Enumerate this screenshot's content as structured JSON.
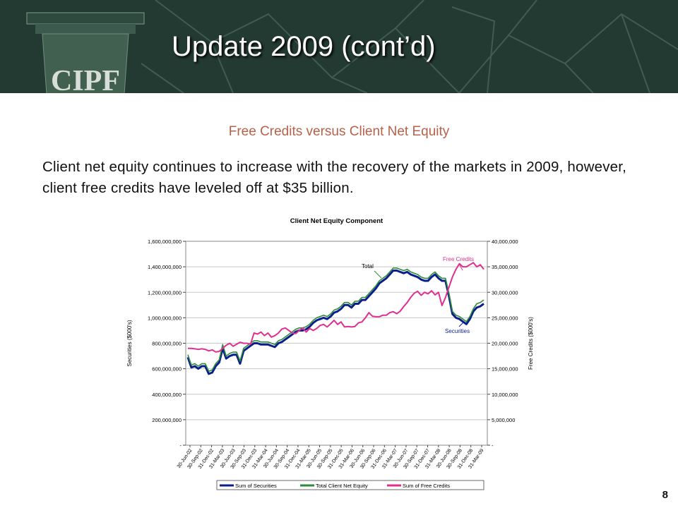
{
  "slide": {
    "logo_text": "CIPF",
    "title": "Update 2009 (cont’d)",
    "subtitle": "Free Credits versus Client Net Equity",
    "body": "Client net equity continues to increase with the recovery of the markets in 2009, however, client free credits have leveled off at $35 billion.",
    "page_number": "8"
  },
  "colors": {
    "header_bg": "#233a32",
    "subtitle": "#b8614a",
    "securities": "#0a1f8c",
    "total": "#2e8b3a",
    "free_credits": "#e0308f"
  },
  "chart_data": {
    "type": "line",
    "title": "Client Net Equity Component",
    "ylabel_left": "Securities ($000's)",
    "ylabel_right": "Free Credits ($000's)",
    "left_axis": {
      "ylim": [
        0,
        1600000000
      ],
      "ticks": [
        "1,600,000,000",
        "1,400,000,000",
        "1,200,000,000",
        "1,000,000,000",
        "800,000,000",
        "600,000,000",
        "400,000,000",
        "200,000,000",
        "-"
      ]
    },
    "right_axis": {
      "ylim": [
        0,
        40000000
      ],
      "ticks": [
        "40,000,000",
        "35,000,000",
        "30,000,000",
        "25,000,000",
        "20,000,000",
        "15,000,000",
        "10,000,000",
        "5,000,000",
        "-"
      ]
    },
    "grid": true,
    "legend_position": "bottom",
    "annotations": [
      "Total",
      "Free Credits",
      "Securities"
    ],
    "x_labels": [
      "30-Jun-02",
      "30-Sep-02",
      "31-Dec-02",
      "31-Mar-03",
      "30-Jun-03",
      "30-Sep-03",
      "31-Dec-03",
      "31-Mar-04",
      "30-Jun-04",
      "30-Sep-04",
      "31-Dec-04",
      "31-Mar-05",
      "30-Jun-05",
      "30-Sep-05",
      "31-Dec-05",
      "31-Mar-06",
      "30-Jun-06",
      "30-Sep-06",
      "31-Dec-06",
      "31-Mar-07",
      "30-Jun-07",
      "30-Sep-07",
      "31-Dec-07",
      "31-Mar-08",
      "30-Jun-08",
      "30-Sep-08",
      "31-Dec-08",
      "31-Mar-09"
    ],
    "series": [
      {
        "name": "Sum of Securities",
        "axis": "left",
        "values": [
          690000000,
          610000000,
          620000000,
          600000000,
          620000000,
          620000000,
          560000000,
          570000000,
          620000000,
          650000000,
          760000000,
          680000000,
          700000000,
          710000000,
          710000000,
          640000000,
          740000000,
          760000000,
          780000000,
          800000000,
          800000000,
          790000000,
          790000000,
          790000000,
          780000000,
          770000000,
          800000000,
          810000000,
          830000000,
          850000000,
          870000000,
          890000000,
          900000000,
          900000000,
          910000000,
          930000000,
          960000000,
          980000000,
          990000000,
          1000000000,
          990000000,
          1010000000,
          1040000000,
          1050000000,
          1070000000,
          1100000000,
          1100000000,
          1080000000,
          1110000000,
          1110000000,
          1140000000,
          1140000000,
          1170000000,
          1200000000,
          1230000000,
          1270000000,
          1290000000,
          1310000000,
          1340000000,
          1370000000,
          1370000000,
          1360000000,
          1350000000,
          1360000000,
          1340000000,
          1330000000,
          1320000000,
          1300000000,
          1290000000,
          1290000000,
          1320000000,
          1340000000,
          1310000000,
          1290000000,
          1290000000,
          1170000000,
          1030000000,
          1000000000,
          990000000,
          970000000,
          950000000,
          990000000,
          1050000000,
          1080000000,
          1090000000,
          1110000000
        ]
      },
      {
        "name": "Total Client Net Equity",
        "axis": "left",
        "values": [
          710000000,
          630000000,
          640000000,
          620000000,
          640000000,
          640000000,
          580000000,
          590000000,
          640000000,
          670000000,
          790000000,
          700000000,
          720000000,
          730000000,
          730000000,
          660000000,
          760000000,
          780000000,
          800000000,
          820000000,
          820000000,
          810000000,
          810000000,
          810000000,
          800000000,
          790000000,
          820000000,
          830000000,
          850000000,
          870000000,
          890000000,
          910000000,
          920000000,
          920000000,
          930000000,
          950000000,
          980000000,
          1000000000,
          1010000000,
          1020000000,
          1010000000,
          1030000000,
          1060000000,
          1070000000,
          1090000000,
          1120000000,
          1120000000,
          1100000000,
          1130000000,
          1130000000,
          1160000000,
          1160000000,
          1190000000,
          1220000000,
          1250000000,
          1290000000,
          1310000000,
          1330000000,
          1360000000,
          1390000000,
          1390000000,
          1380000000,
          1370000000,
          1380000000,
          1360000000,
          1350000000,
          1340000000,
          1320000000,
          1310000000,
          1310000000,
          1340000000,
          1360000000,
          1330000000,
          1310000000,
          1310000000,
          1190000000,
          1050000000,
          1020000000,
          1010000000,
          990000000,
          970000000,
          1010000000,
          1070000000,
          1110000000,
          1120000000,
          1140000000
        ]
      },
      {
        "name": "Sum of Free Credits",
        "axis": "right",
        "values": [
          19000000,
          19000000,
          18900000,
          18800000,
          18900000,
          18800000,
          18500000,
          18700000,
          18300000,
          18400000,
          19000000,
          19600000,
          20000000,
          19400000,
          19800000,
          20200000,
          20000000,
          20000000,
          19800000,
          22000000,
          21800000,
          22200000,
          21500000,
          22000000,
          21200000,
          21500000,
          22000000,
          22800000,
          23000000,
          22500000,
          22000000,
          21900000,
          22500000,
          23000000,
          22200000,
          22900000,
          22500000,
          22900000,
          23500000,
          23700000,
          23200000,
          23800000,
          24500000,
          23700000,
          24200000,
          23200000,
          23300000,
          23200000,
          23300000,
          24000000,
          24200000,
          25000000,
          26000000,
          25300000,
          25200000,
          25200000,
          25500000,
          25500000,
          26000000,
          26200000,
          25800000,
          26300000,
          27200000,
          28000000,
          29000000,
          29800000,
          30200000,
          29400000,
          30000000,
          29700000,
          30300000,
          29500000,
          30000000,
          27400000,
          29000000,
          31000000,
          33000000,
          34500000,
          35600000,
          35000000,
          35000000,
          35400000,
          35800000,
          35000000,
          35400000,
          34500000
        ]
      }
    ]
  }
}
